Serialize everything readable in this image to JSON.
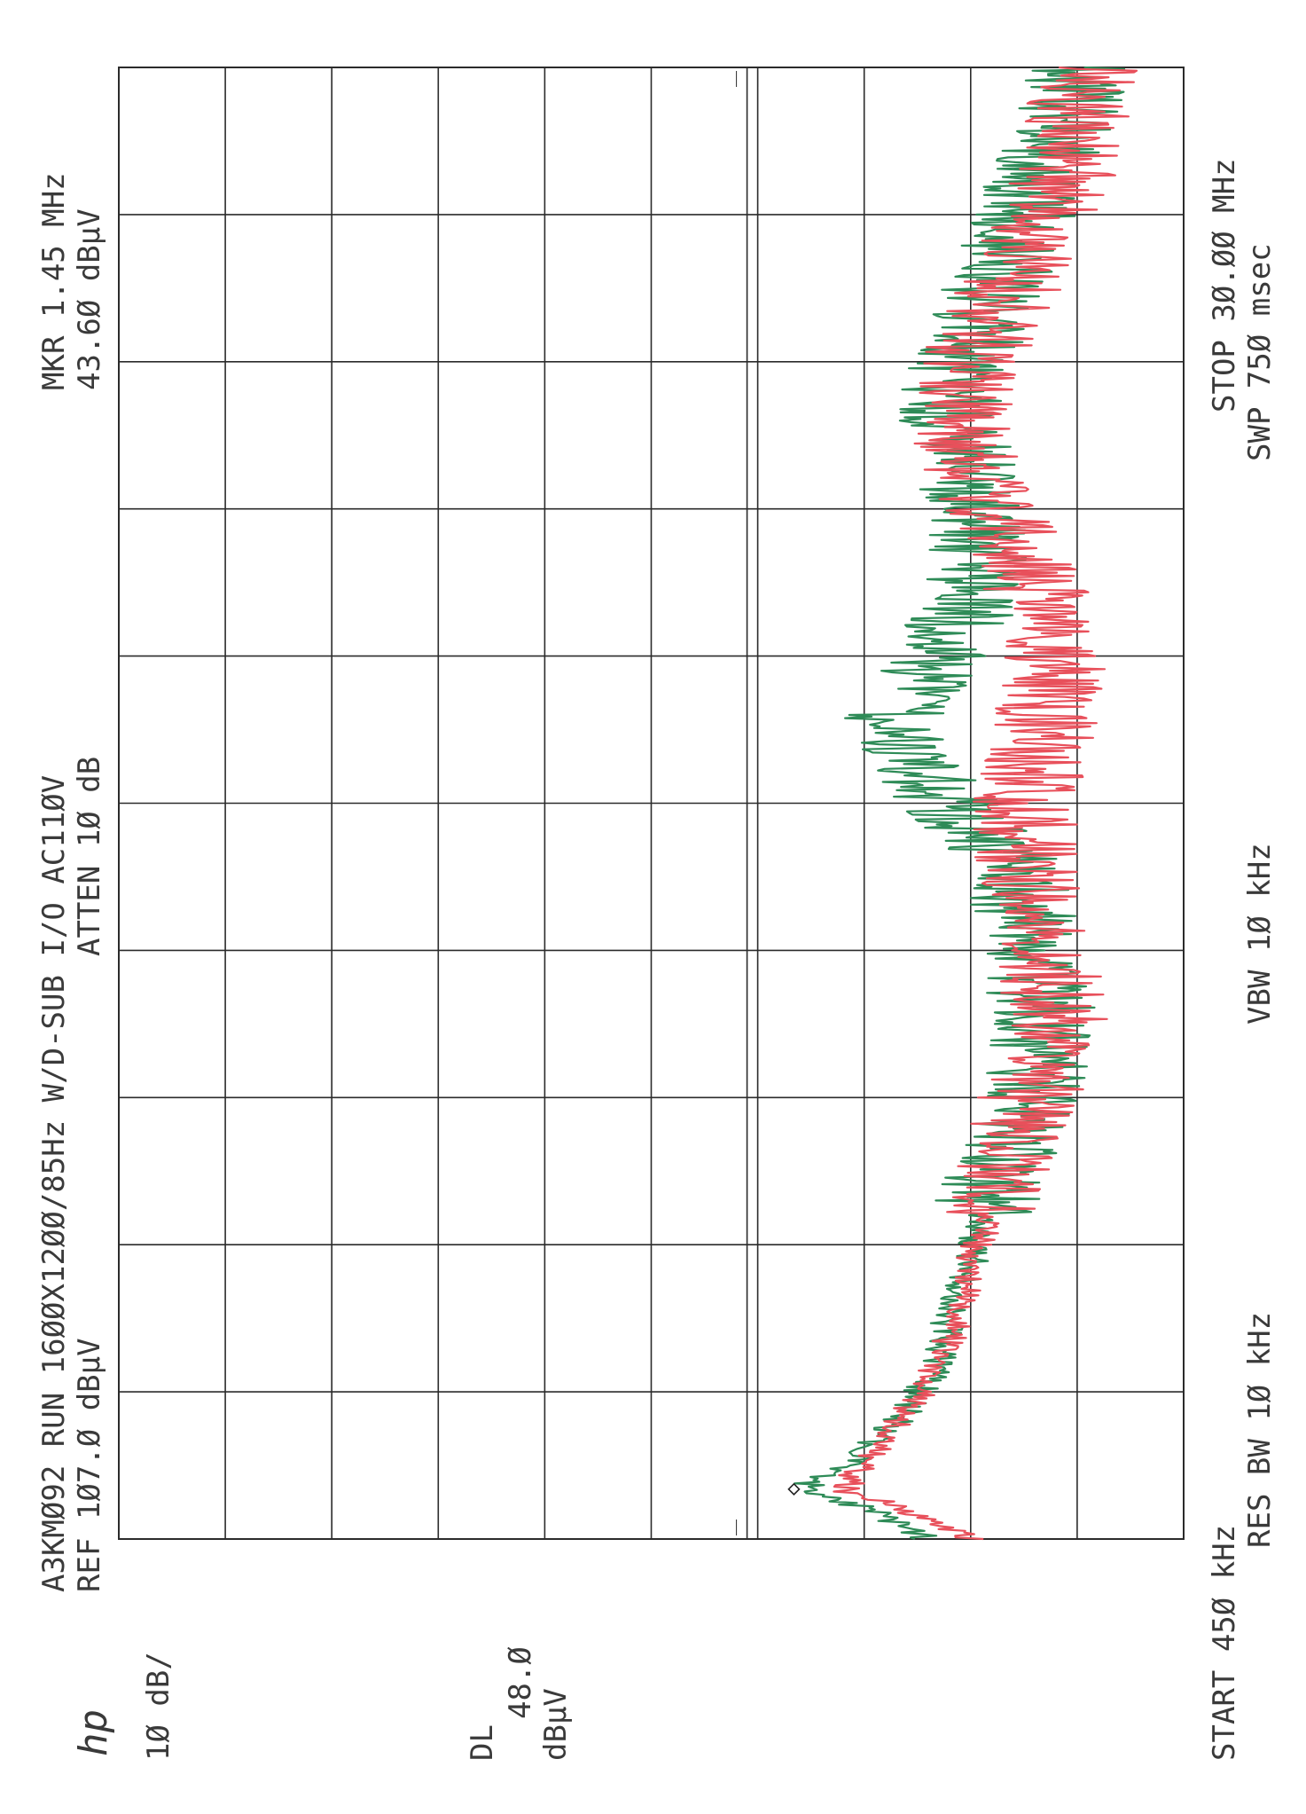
{
  "header": {
    "line1": "A3KMØ92 RUN 16ØØX12ØØ/85Hz W/D-SUB I/O AC11ØV",
    "ref": "REF 1Ø7.Ø dBµV",
    "atten": "ATTEN 1Ø dB",
    "mkr_freq": "MKR 1.45 MHz",
    "mkr_level": "43.6Ø dBµV"
  },
  "side": {
    "logo": "hp",
    "scale": "1Ø dB/",
    "dl_label": "DL",
    "dl_value": "48.Ø",
    "dl_unit": "dBµV"
  },
  "footer": {
    "start": "START 45Ø kHz",
    "res_bw": "RES BW 1Ø kHz",
    "vbw": "VBW 1Ø kHz",
    "stop": "STOP 3Ø.ØØ MHz",
    "swp": "SWP 75Ø msec"
  },
  "colors": {
    "grid": "#2b2b2b",
    "series_green": "#2e8b57",
    "series_red": "#e8505b",
    "series_dark": "#4a3f3a",
    "text": "#3a3a3a"
  },
  "chart_data": {
    "type": "line",
    "orientation": "rotated-90-ccw",
    "xlabel": "",
    "ylabel": "",
    "xlim_mhz": [
      0.45,
      30.0
    ],
    "ylim_dbuv": [
      7.0,
      107.0
    ],
    "grid": true,
    "display_line_dbuv": 48.0,
    "marker": {
      "freq_mhz": 1.45,
      "level_dbuv": 43.6
    },
    "series": [
      {
        "color": "green",
        "x_mhz": [
          0.45,
          1.0,
          1.45,
          2.0,
          3.0,
          4.0,
          5.0,
          6.0,
          7.0,
          8.0,
          9.0,
          10.0,
          11.0,
          12.0,
          13.0,
          14.0,
          15.0,
          16.0,
          17.0,
          18.0,
          19.0,
          20.0,
          21.0,
          22.0,
          23.0,
          24.0,
          25.0,
          26.0,
          27.0,
          28.0,
          29.0,
          30.0
        ],
        "y_dbuv": [
          31,
          36,
          43,
          38,
          33,
          30,
          29,
          27,
          26,
          24,
          22,
          21,
          20,
          22,
          22,
          23,
          28,
          32,
          34,
          31,
          28,
          26,
          27,
          27,
          29,
          28,
          26,
          24,
          22,
          20,
          18,
          17
        ]
      },
      {
        "color": "red",
        "x_mhz": [
          0.45,
          1.0,
          1.45,
          2.0,
          3.0,
          4.0,
          5.0,
          6.0,
          7.0,
          8.0,
          9.0,
          10.0,
          11.0,
          12.0,
          13.0,
          14.0,
          15.0,
          16.0,
          17.0,
          18.0,
          19.0,
          20.0,
          21.0,
          22.0,
          23.0,
          24.0,
          25.0,
          26.0,
          27.0,
          28.0,
          29.0,
          30.0
        ],
        "y_dbuv": [
          27,
          33,
          39,
          37,
          33,
          30,
          28,
          27,
          25,
          24,
          22,
          20,
          19,
          20,
          21,
          22,
          22,
          21,
          20,
          19,
          20,
          22,
          24,
          27,
          28,
          27,
          25,
          22,
          20,
          18,
          17,
          16
        ]
      }
    ]
  }
}
